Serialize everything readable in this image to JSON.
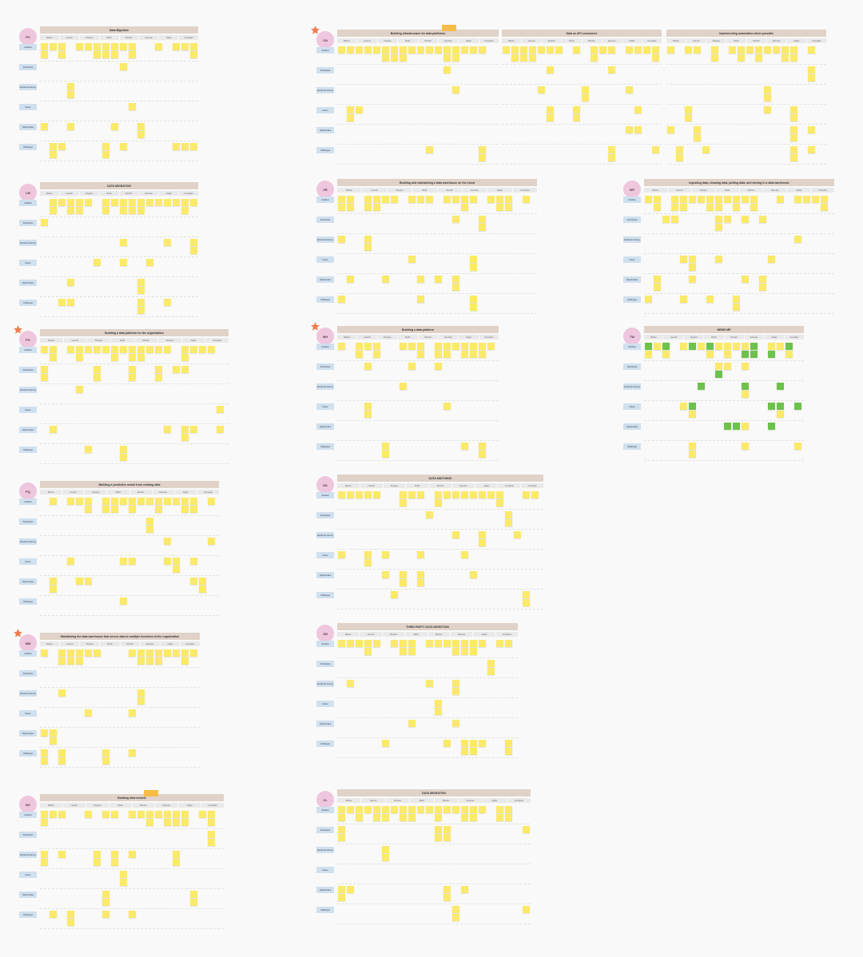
{
  "colors": {
    "background": "#f9f9f9",
    "title": "#e0d2c8",
    "stage": "#e9e9e9",
    "rowlabel": "#cfe0ef",
    "sticky": "#fbe96a",
    "sticky_green": "#6cc24a",
    "avatar": "#eec6dd",
    "star": "#ef7d52",
    "note": "#f6bd46"
  },
  "icons": {
    "star": "star-icon"
  },
  "boards": [
    {
      "id": "b1",
      "avatar": "PC",
      "star": false,
      "title": "Data Migration",
      "stages": [
        "Before",
        "Launch",
        "Prepare",
        "Build",
        "Monitor",
        "Execute",
        "Adapt",
        "Complete"
      ],
      "rows": [
        "Activities",
        "Touchpoints",
        "Emotional Journey",
        "Issues",
        "Opportunities",
        "Challenges"
      ],
      "notes": []
    },
    {
      "id": "b2",
      "avatar": "CN",
      "star": true,
      "title": "Building infrastructure for data platforms",
      "stages": [
        "Before",
        "Launch",
        "Prepare",
        "Build",
        "Monitor",
        "Execute",
        "Adapt",
        "Complete"
      ],
      "rows": [
        "Activities",
        "Touchpoints",
        "Emotional Journey",
        "Issues",
        "Opportunities",
        "Challenges"
      ],
      "notes": [
        ""
      ]
    },
    {
      "id": "b3",
      "avatar": "",
      "star": false,
      "title": "Data as API consumers",
      "stages": [
        "Before",
        "Launch",
        "Prepare",
        "Build",
        "Monitor",
        "Execute",
        "Adapt",
        "Complete"
      ],
      "rows": [],
      "notes": []
    },
    {
      "id": "b4",
      "avatar": "",
      "star": false,
      "title": "Implementing automation when possible",
      "stages": [
        "Before",
        "Launch",
        "Prepare",
        "Build",
        "Monitor",
        "Execute",
        "Adapt",
        "Complete"
      ],
      "rows": [],
      "notes": []
    },
    {
      "id": "b5",
      "avatar": "LM",
      "star": false,
      "title": "DATA MIGRATION",
      "stages": [
        "Before",
        "Launch",
        "Prepare",
        "Build",
        "Monitor",
        "Execute",
        "Adapt",
        "Complete"
      ],
      "rows": [
        "Activities",
        "Touchpoints",
        "Emotional Journey",
        "Issues",
        "Opportunities",
        "Challenges"
      ],
      "notes": []
    },
    {
      "id": "b6",
      "avatar": "ZR",
      "star": false,
      "title": "Building and maintaining a data warehouse on the cloud",
      "stages": [
        "Before",
        "Launch",
        "Prepare",
        "Build",
        "Monitor",
        "Execute",
        "Adapt",
        "Complete"
      ],
      "rows": [
        "Activities",
        "Touchpoints",
        "Emotional Journey",
        "Issues",
        "Opportunities",
        "Challenges"
      ],
      "notes": []
    },
    {
      "id": "b7",
      "avatar": "WP",
      "star": false,
      "title": "Ingesting data, cleaning data, putting data, and storing in a data warehouse",
      "stages": [
        "Before",
        "Launch",
        "Prepare",
        "Build",
        "Monitor",
        "Execute",
        "Adapt",
        "Complete"
      ],
      "rows": [
        "Activities",
        "Touchpoints",
        "Emotional Journey",
        "Issues",
        "Opportunities",
        "Challenges"
      ],
      "notes": []
    },
    {
      "id": "b8",
      "avatar": "PG",
      "star": true,
      "title": "Building a data platform for the organization",
      "stages": [
        "Before",
        "Launch",
        "Prepare",
        "Build",
        "Monitor",
        "Execute",
        "Adapt",
        "Complete"
      ],
      "rows": [
        "Activities",
        "Touchpoints",
        "Emotional Journey",
        "Issues",
        "Opportunities",
        "Challenges"
      ],
      "notes": []
    },
    {
      "id": "b9",
      "avatar": "MH",
      "star": true,
      "title": "Building a data platform",
      "stages": [
        "Before",
        "Launch",
        "Prepare",
        "Build",
        "Monitor",
        "Execute",
        "Adapt",
        "Complete"
      ],
      "rows": [
        "Activities",
        "Touchpoints",
        "Emotional Journey",
        "Issues",
        "Opportunities",
        "Challenges"
      ],
      "notes": []
    },
    {
      "id": "b10",
      "avatar": "TW",
      "star": false,
      "title": "MEMO ME",
      "stages": [
        "Before",
        "Launch",
        "Prepare",
        "Build",
        "Monitor",
        "Execute",
        "Adapt",
        "Complete"
      ],
      "rows": [
        "Activities",
        "Touchpoints",
        "Emotional Journey",
        "Issues",
        "Opportunities",
        "Challenges"
      ],
      "notes": []
    },
    {
      "id": "b11",
      "avatar": "PQ",
      "star": false,
      "title": "Building a predictive model from existing data",
      "stages": [
        "Before",
        "Launch",
        "Prepare",
        "Build",
        "Monitor",
        "Execute",
        "Adapt",
        "Complete"
      ],
      "rows": [
        "Activities",
        "Touchpoints",
        "Emotional Journey",
        "Issues",
        "Opportunities",
        "Challenges"
      ],
      "notes": []
    },
    {
      "id": "b12",
      "avatar": "DK",
      "star": false,
      "title": "DATA MATCHING",
      "stages": [
        "Before",
        "Launch",
        "Prepare",
        "Build",
        "Monitor",
        "Execute",
        "Adapt",
        "Complete",
        "Complete"
      ],
      "rows": [
        "Activities",
        "Touchpoints",
        "Emotional Journey",
        "Issues",
        "Opportunities",
        "Challenges"
      ],
      "notes": []
    },
    {
      "id": "b13",
      "avatar": "MM",
      "star": true,
      "title": "Maintaining the data warehouse that serves data to multiple functions of the organization",
      "stages": [
        "Before",
        "Launch",
        "Prepare",
        "Build",
        "Monitor",
        "Execute",
        "Adapt",
        "Complete"
      ],
      "rows": [
        "Activities",
        "Touchpoints",
        "Emotional Journey",
        "Issues",
        "Opportunities",
        "Challenges"
      ],
      "notes": []
    },
    {
      "id": "b14",
      "avatar": "JW",
      "star": false,
      "title": "THIRD PARTY DATA INGESTION",
      "stages": [
        "Before",
        "Launch",
        "Prepare",
        "Build",
        "Monitor",
        "Execute",
        "Adapt",
        "Complete"
      ],
      "rows": [
        "Activities",
        "Touchpoints",
        "Emotional Journey",
        "Issues",
        "Opportunities",
        "Challenges"
      ],
      "notes": []
    },
    {
      "id": "b15",
      "avatar": "MZ",
      "star": false,
      "title": "Building data models",
      "stages": [
        "Before",
        "Launch",
        "Prepare",
        "Build",
        "Monitor",
        "Execute",
        "Adapt",
        "Complete"
      ],
      "rows": [
        "Activities",
        "Touchpoints",
        "Emotional Journey",
        "Issues",
        "Opportunities",
        "Challenges"
      ],
      "notes": [
        ""
      ]
    },
    {
      "id": "b16",
      "avatar": "CL",
      "star": false,
      "title": "DATA MIGRATION",
      "stages": [
        "Before",
        "Launch",
        "Prepare",
        "Build",
        "Monitor",
        "Execute",
        "Adapt",
        "Complete"
      ],
      "rows": [
        "Activities",
        "Touchpoints",
        "Emotional Journey",
        "Issues",
        "Opportunities",
        "Challenges"
      ],
      "notes": []
    }
  ]
}
